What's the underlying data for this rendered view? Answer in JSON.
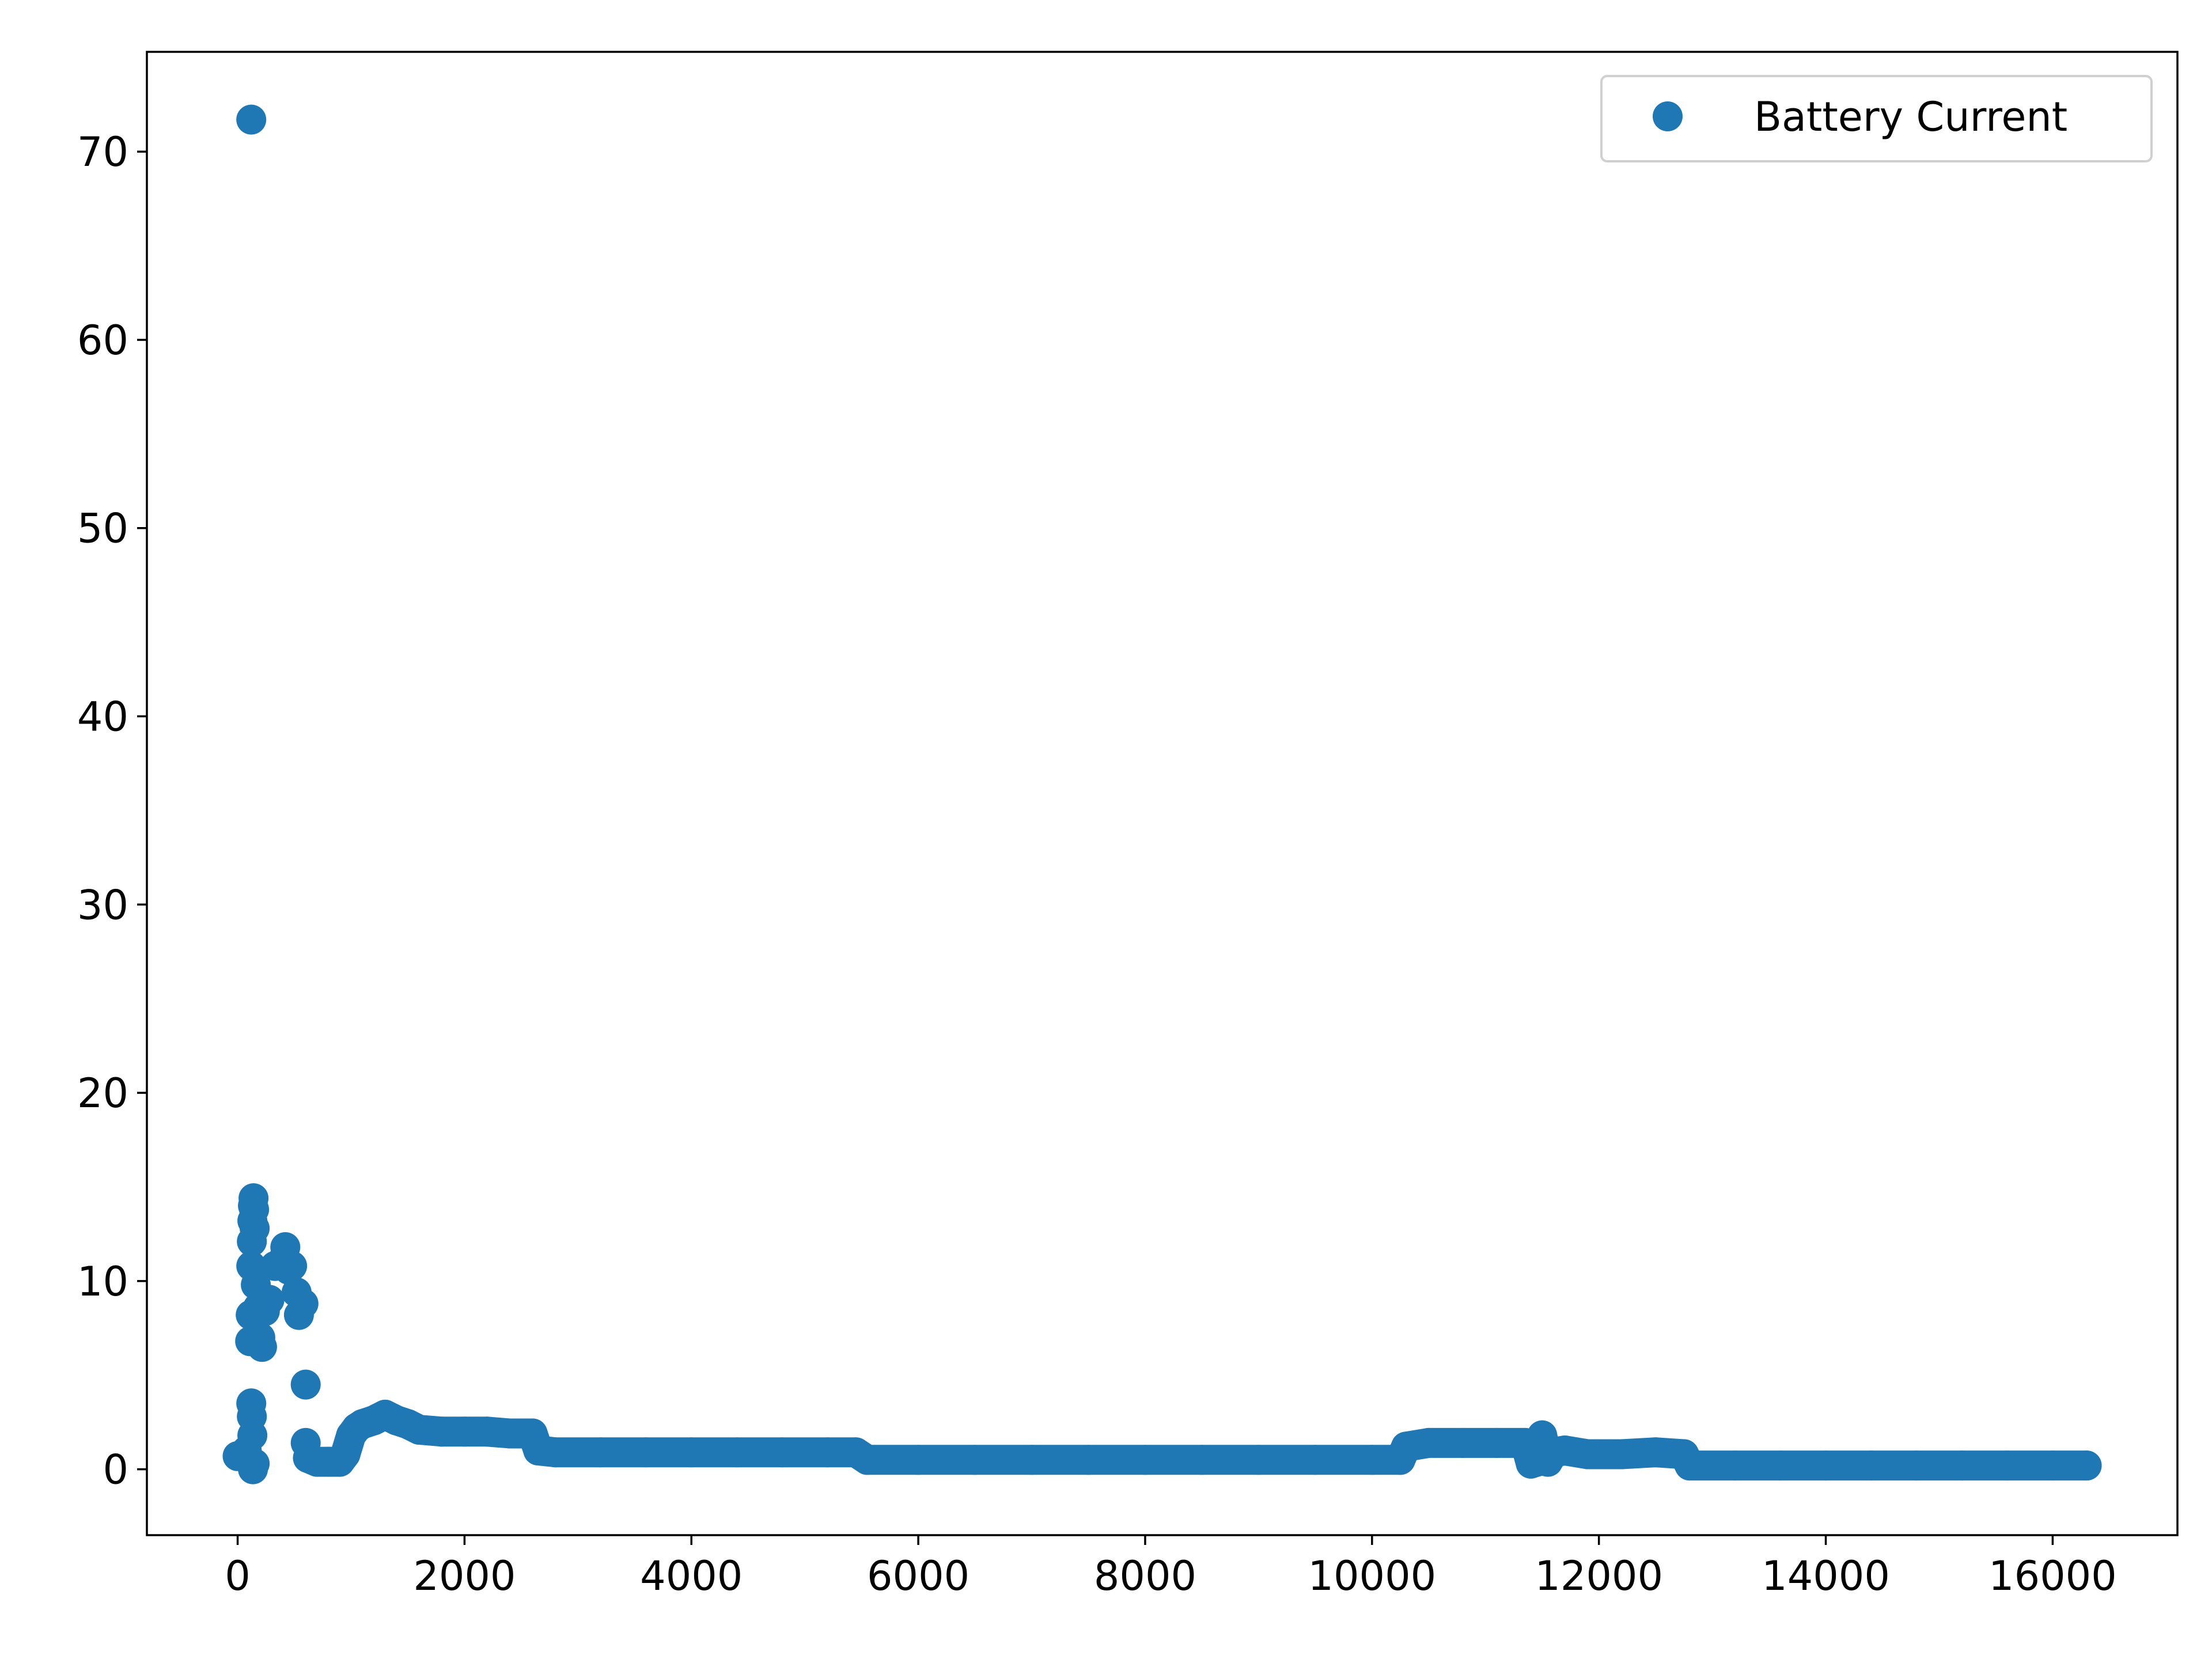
{
  "chart_data": {
    "type": "scatter",
    "title": "",
    "xlabel": "",
    "ylabel": "",
    "xlim": [
      -800,
      17100
    ],
    "ylim": [
      -3.5,
      75.3
    ],
    "x_ticks": [
      0,
      2000,
      4000,
      6000,
      8000,
      10000,
      12000,
      14000,
      16000
    ],
    "y_ticks": [
      0,
      10,
      20,
      30,
      40,
      50,
      60,
      70
    ],
    "x_tick_labels": [
      "0",
      "2000",
      "4000",
      "6000",
      "8000",
      "10000",
      "12000",
      "14000",
      "16000"
    ],
    "y_tick_labels": [
      "0",
      "10",
      "20",
      "30",
      "40",
      "50",
      "60",
      "70"
    ],
    "grid": false,
    "legend": {
      "position": "top-right",
      "entries": [
        "Battery Current"
      ]
    },
    "series": [
      {
        "name": "Battery Current",
        "color": "#1f77b4",
        "marker": "circle",
        "points": [
          [
            0,
            0.7
          ],
          [
            80,
            1.0
          ],
          [
            100,
            0.5
          ],
          [
            110,
            6.8
          ],
          [
            115,
            8.2
          ],
          [
            120,
            10.8
          ],
          [
            125,
            12.1
          ],
          [
            130,
            13.2
          ],
          [
            135,
            14.0
          ],
          [
            140,
            14.4
          ],
          [
            145,
            13.8
          ],
          [
            150,
            12.8
          ],
          [
            120,
            3.5
          ],
          [
            125,
            2.8
          ],
          [
            130,
            1.8
          ],
          [
            135,
            0.0
          ],
          [
            150,
            0.3
          ],
          [
            160,
            9.8
          ],
          [
            180,
            8.6
          ],
          [
            200,
            7.0
          ],
          [
            215,
            6.5
          ],
          [
            240,
            8.4
          ],
          [
            280,
            9.0
          ],
          [
            330,
            10.8
          ],
          [
            380,
            11.0
          ],
          [
            420,
            11.8
          ],
          [
            450,
            10.6
          ],
          [
            480,
            10.8
          ],
          [
            520,
            9.4
          ],
          [
            540,
            8.2
          ],
          [
            580,
            8.8
          ],
          [
            600,
            4.5
          ],
          [
            600,
            1.4
          ],
          [
            620,
            0.6
          ],
          [
            700,
            0.4
          ],
          [
            800,
            0.4
          ],
          [
            900,
            0.4
          ],
          [
            950,
            0.8
          ],
          [
            1000,
            1.8
          ],
          [
            1050,
            2.2
          ],
          [
            1100,
            2.4
          ],
          [
            1200,
            2.6
          ],
          [
            1300,
            2.9
          ],
          [
            1400,
            2.6
          ],
          [
            1500,
            2.4
          ],
          [
            1600,
            2.1
          ],
          [
            1800,
            2.0
          ],
          [
            2000,
            2.0
          ],
          [
            2200,
            2.0
          ],
          [
            2400,
            1.9
          ],
          [
            2600,
            1.9
          ],
          [
            2650,
            1.0
          ],
          [
            2800,
            0.9
          ],
          [
            3200,
            0.9
          ],
          [
            3600,
            0.9
          ],
          [
            4000,
            0.9
          ],
          [
            4400,
            0.9
          ],
          [
            4800,
            0.9
          ],
          [
            5200,
            0.9
          ],
          [
            5450,
            0.9
          ],
          [
            5550,
            0.5
          ],
          [
            6000,
            0.5
          ],
          [
            6500,
            0.5
          ],
          [
            7000,
            0.5
          ],
          [
            7500,
            0.5
          ],
          [
            8000,
            0.5
          ],
          [
            8500,
            0.5
          ],
          [
            9000,
            0.5
          ],
          [
            9500,
            0.5
          ],
          [
            10000,
            0.5
          ],
          [
            10250,
            0.5
          ],
          [
            10300,
            1.2
          ],
          [
            10500,
            1.4
          ],
          [
            10800,
            1.4
          ],
          [
            11100,
            1.4
          ],
          [
            11350,
            1.4
          ],
          [
            11400,
            0.3
          ],
          [
            11450,
            0.4
          ],
          [
            11500,
            1.8
          ],
          [
            11550,
            0.4
          ],
          [
            11600,
            0.9
          ],
          [
            11700,
            1.0
          ],
          [
            11900,
            0.8
          ],
          [
            12200,
            0.8
          ],
          [
            12500,
            0.9
          ],
          [
            12750,
            0.8
          ],
          [
            12800,
            0.2
          ],
          [
            13200,
            0.2
          ],
          [
            13600,
            0.2
          ],
          [
            14000,
            0.2
          ],
          [
            14400,
            0.2
          ],
          [
            14800,
            0.2
          ],
          [
            15200,
            0.2
          ],
          [
            15600,
            0.2
          ],
          [
            16000,
            0.2
          ],
          [
            16300,
            0.2
          ],
          [
            120,
            71.7
          ]
        ]
      }
    ]
  }
}
